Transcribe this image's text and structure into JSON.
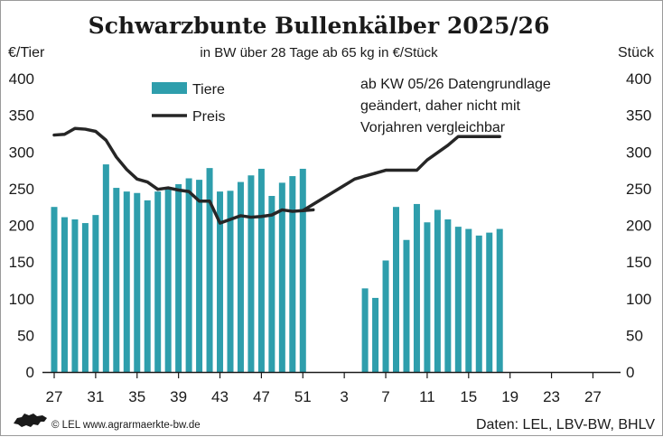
{
  "chart_data": {
    "type": "bar",
    "title": "Schwarzbunte Bullenkälber 2025/26",
    "subtitle": "in BW über 28 Tage ab 65 kg in €/Stück",
    "y_left_label": "€/Tier",
    "y_right_label": "Stück",
    "ylim": [
      0,
      400
    ],
    "yticks": [
      0,
      50,
      100,
      150,
      200,
      250,
      300,
      350,
      400
    ],
    "x_weeks": [
      27,
      28,
      29,
      30,
      31,
      32,
      33,
      34,
      35,
      36,
      37,
      38,
      39,
      40,
      41,
      42,
      43,
      44,
      45,
      46,
      47,
      48,
      49,
      50,
      51,
      52,
      1,
      2,
      3,
      4,
      5,
      6,
      7,
      8,
      9,
      10,
      11,
      12,
      13,
      14,
      15,
      16,
      17,
      18,
      19,
      20,
      21,
      22,
      23,
      24,
      25,
      26,
      27
    ],
    "x_tick_labels": [
      "27",
      "31",
      "35",
      "39",
      "43",
      "47",
      "51",
      "3",
      "7",
      "11",
      "15",
      "19",
      "23",
      "27"
    ],
    "grid": false,
    "series": [
      {
        "name": "Tiere",
        "kind": "bar",
        "axis": "right",
        "color": "#2e9eac",
        "values": [
          225,
          211,
          208,
          203,
          214,
          283,
          251,
          246,
          244,
          234,
          246,
          250,
          256,
          264,
          262,
          278,
          246,
          247,
          259,
          268,
          277,
          240,
          258,
          267,
          277,
          null,
          null,
          null,
          null,
          null,
          114,
          101,
          152,
          225,
          180,
          229,
          204,
          221,
          208,
          198,
          195,
          186,
          190,
          195,
          null,
          null,
          null,
          null,
          null,
          null,
          null,
          null,
          null
        ]
      },
      {
        "name": "Preis",
        "kind": "line",
        "axis": "left",
        "color": "#262626",
        "values": [
          323,
          324,
          332,
          331,
          328,
          316,
          293,
          276,
          263,
          259,
          249,
          251,
          248,
          246,
          233,
          233,
          203,
          208,
          213,
          211,
          212,
          214,
          221,
          219,
          220,
          221,
          null,
          null,
          null,
          null,
          null,
          271,
          275,
          275,
          275,
          275,
          289,
          299,
          309,
          321,
          321,
          321,
          321,
          321,
          null,
          null,
          null,
          null,
          null,
          null,
          null,
          null,
          null
        ],
        "dashed_bridge": [
          [
            51,
            220
          ],
          [
            4,
            263
          ]
        ]
      }
    ],
    "legend": {
      "placement": "top-left",
      "position_hint": "upper-left"
    },
    "annotation": [
      "ab KW 05/26 Datengrundlage",
      "geändert, daher nicht mit",
      "Vorjahren vergleichbar"
    ]
  },
  "footer": {
    "credit": "© LEL www.agrarmaerkte-bw.de",
    "source": "Daten: LEL, LBV-BW, BHLV",
    "logo_icon": "lion-icon"
  }
}
